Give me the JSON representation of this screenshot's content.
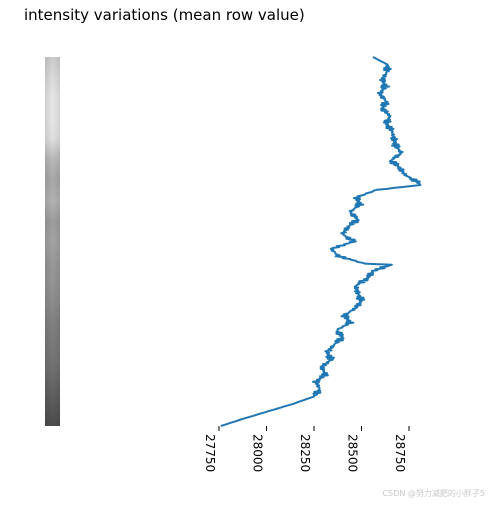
{
  "figure": {
    "title": "intensity variations (mean row value)",
    "watermark": "CSDN @努力减肥的小胖子5"
  },
  "colors": {
    "line": "#1f77b4",
    "text": "#000000"
  },
  "chart_data": [
    {
      "type": "image",
      "description_of_mark": "grayscale image strip",
      "grayscale_profile_top_to_bottom": [
        0.8,
        0.86,
        0.9,
        0.9,
        0.88,
        0.72,
        0.66,
        0.7,
        0.62,
        0.64,
        0.6,
        0.58,
        0.55,
        0.5,
        0.48,
        0.45,
        0.4,
        0.35,
        0.3
      ],
      "axes_visible": false
    },
    {
      "type": "line",
      "title": "",
      "xlabel": "",
      "ylabel": "",
      "x_axis": {
        "ticks": [
          27750,
          28000,
          28250,
          28500,
          28750
        ],
        "tick_labels": [
          "27750",
          "28000",
          "28250",
          "28500",
          "28750"
        ],
        "tick_label_rotation": "vertical",
        "range": [
          27750,
          28870
        ]
      },
      "y_axis": {
        "visible": false,
        "orientation": "row index top to bottom",
        "range": [
          0,
          100
        ]
      },
      "grid": false,
      "series": [
        {
          "row": [
            0,
            2,
            4,
            6,
            8,
            10,
            12,
            14,
            16,
            18,
            20,
            22,
            24,
            26,
            28,
            30,
            32,
            34,
            34.7,
            36,
            38,
            40,
            42,
            44,
            46,
            48,
            50,
            52,
            54,
            56,
            56.3,
            58,
            60,
            62,
            64,
            66,
            68,
            70,
            72,
            74,
            76,
            78,
            80,
            82,
            84,
            86,
            88,
            90,
            92,
            94,
            96,
            98,
            100
          ],
          "value": [
            28560,
            28635,
            28635,
            28610,
            28625,
            28595,
            28630,
            28610,
            28650,
            28630,
            28660,
            28670,
            28680,
            28710,
            28655,
            28700,
            28730,
            28800,
            28810,
            28580,
            28475,
            28490,
            28440,
            28480,
            28430,
            28400,
            28460,
            28340,
            28380,
            28520,
            28660,
            28560,
            28530,
            28470,
            28480,
            28500,
            28470,
            28410,
            28440,
            28370,
            28400,
            28355,
            28320,
            28340,
            28290,
            28310,
            28260,
            28280,
            28250,
            28140,
            28010,
            27880,
            27760
          ]
        }
      ]
    }
  ]
}
